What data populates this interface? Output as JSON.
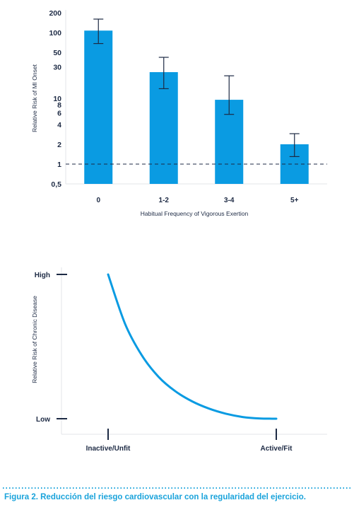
{
  "chart_data": [
    {
      "type": "bar",
      "categories": [
        "0",
        "1-2",
        "3-4",
        "5+"
      ],
      "values": [
        107,
        25,
        9.5,
        2
      ],
      "error_low": [
        68,
        14,
        5.7,
        1.3
      ],
      "error_high": [
        160,
        42,
        22,
        2.9
      ],
      "reference_line": 1,
      "ylabel": "Relative Risk of MI Onset",
      "xlabel": "Habitual Frequency of Vigorous Exertion",
      "yscale": "log",
      "ylim": [
        0.5,
        200
      ],
      "ytick_values": [
        0.5,
        1,
        2,
        4,
        6,
        8,
        10,
        30,
        50,
        100,
        200
      ],
      "yticks": [
        "0,5",
        "1",
        "2",
        "4",
        "6",
        "8",
        "10",
        "30",
        "50",
        "100",
        "200"
      ],
      "color": "#0a9be2"
    },
    {
      "type": "line",
      "x": [
        0,
        0.1,
        0.2,
        0.3,
        0.4,
        0.5,
        0.6,
        0.7,
        0.8,
        0.9,
        1.0
      ],
      "y": [
        1.0,
        0.66,
        0.44,
        0.29,
        0.19,
        0.12,
        0.07,
        0.035,
        0.012,
        0.002,
        0
      ],
      "ylabel": "Relative Risk of Chronic Disease",
      "yticks": [
        "High",
        "Low"
      ],
      "xticks": [
        "Inactive/Unfit",
        "Active/Fit"
      ],
      "color": "#0a9be2"
    }
  ],
  "caption": "Figura 2. Reducción del riesgo cardiovascular con la regularidad del ejercicio."
}
